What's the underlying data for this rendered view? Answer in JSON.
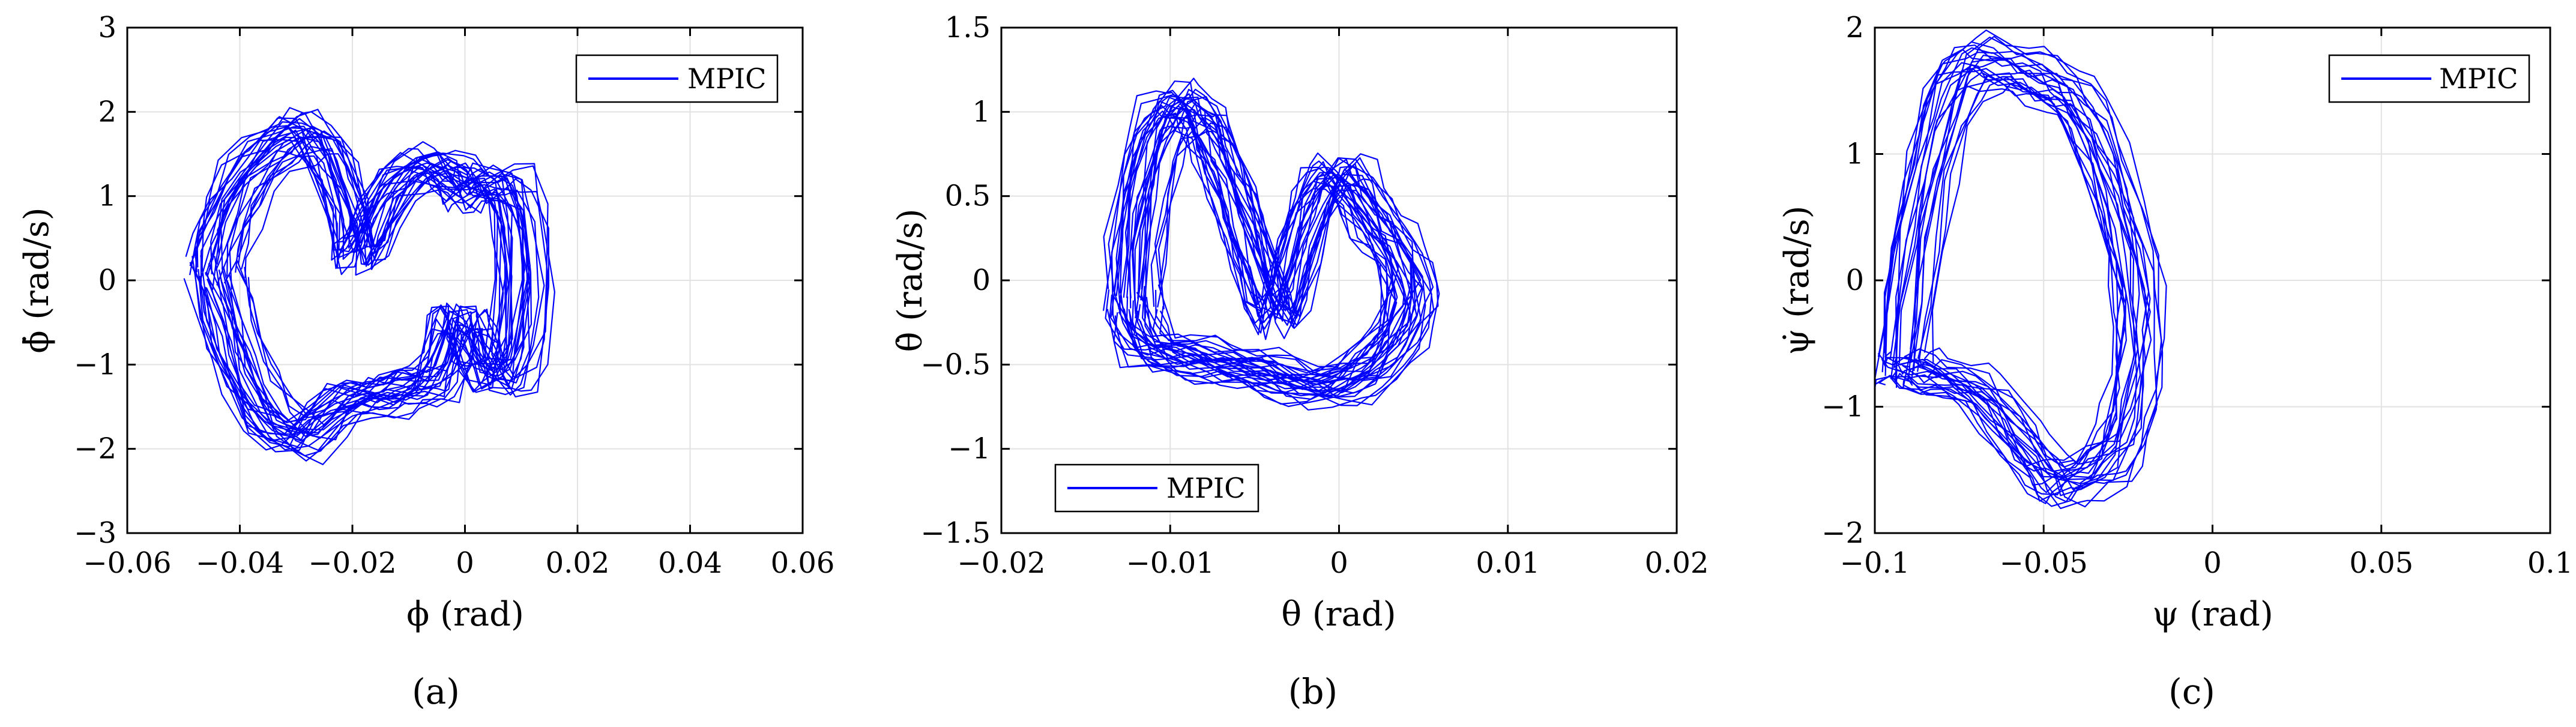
{
  "line_color": "#0000ff",
  "chart_data": [
    {
      "type": "line",
      "panel_label": "(a)",
      "xlabel": "ϕ (rad)",
      "ylabel": "ϕ̇ (rad/s)",
      "xlim": [
        -0.06,
        0.06
      ],
      "ylim": [
        -3,
        3
      ],
      "xticks": [
        -0.06,
        -0.04,
        -0.02,
        0,
        0.02,
        0.04,
        0.06
      ],
      "yticks": [
        -3,
        -2,
        -1,
        0,
        1,
        2,
        3
      ],
      "xtick_labels": [
        "−0.06",
        "−0.04",
        "−0.02",
        "0",
        "0.02",
        "0.04",
        "0.06"
      ],
      "ytick_labels": [
        "−3",
        "−2",
        "−1",
        "0",
        "1",
        "2",
        "3"
      ],
      "grid": true,
      "legend_position": "top-right",
      "series": [
        {
          "name": "MPIC",
          "color": "#0000ff",
          "x": [
            -0.047,
            -0.046,
            -0.044,
            -0.041,
            -0.037,
            -0.033,
            -0.03,
            -0.027,
            -0.024,
            -0.021,
            -0.02,
            -0.018,
            -0.015,
            -0.011,
            -0.007,
            -0.004,
            -0.001,
            0.001,
            0.003,
            0.006,
            0.009,
            0.011,
            0.012,
            0.011,
            0.009,
            0.006,
            0.004,
            0.002,
            0.001,
            -0.001,
            -0.003,
            -0.005,
            -0.008,
            -0.011,
            -0.014,
            -0.017,
            -0.021,
            -0.025,
            -0.029,
            -0.033,
            -0.037,
            -0.04,
            -0.043,
            -0.045,
            -0.047
          ],
          "y": [
            0.1,
            0.5,
            0.9,
            1.3,
            1.6,
            1.8,
            1.9,
            1.8,
            1.4,
            0.8,
            0.3,
            0.4,
            0.9,
            1.3,
            1.45,
            1.45,
            1.3,
            1.1,
            1.2,
            1.25,
            1.2,
            0.8,
            0.0,
            -0.8,
            -1.2,
            -1.25,
            -1.1,
            -0.7,
            -0.5,
            -0.5,
            -1.0,
            -1.3,
            -1.35,
            -1.4,
            -1.45,
            -1.5,
            -1.5,
            -1.7,
            -2.0,
            -1.95,
            -1.75,
            -1.4,
            -0.9,
            -0.4,
            0.1
          ]
        }
      ]
    },
    {
      "type": "line",
      "panel_label": "(b)",
      "xlabel": "θ (rad)",
      "ylabel": "θ̇ (rad/s)",
      "xlim": [
        -0.02,
        0.02
      ],
      "ylim": [
        -1.5,
        1.5
      ],
      "xticks": [
        -0.02,
        -0.01,
        0,
        0.01,
        0.02
      ],
      "yticks": [
        -1.5,
        -1,
        -0.5,
        0,
        0.5,
        1,
        1.5
      ],
      "xtick_labels": [
        "−0.02",
        "−0.01",
        "0",
        "0.01",
        "0.02"
      ],
      "ytick_labels": [
        "−1.5",
        "−1",
        "−0.5",
        "0",
        "0.5",
        "1",
        "1.5"
      ],
      "grid": true,
      "legend_position": "bottom-left",
      "series": [
        {
          "name": "MPIC",
          "color": "#0000ff",
          "x": [
            -0.0128,
            -0.0127,
            -0.0122,
            -0.0115,
            -0.0107,
            -0.0099,
            -0.0092,
            -0.0086,
            -0.008,
            -0.0074,
            -0.0066,
            -0.0058,
            -0.005,
            -0.0042,
            -0.0036,
            -0.003,
            -0.0022,
            -0.0014,
            -0.0006,
            0.0002,
            0.001,
            0.0018,
            0.0026,
            0.0034,
            0.0042,
            0.0047,
            0.0046,
            0.004,
            0.003,
            0.0018,
            0.0006,
            -0.0008,
            -0.0022,
            -0.0036,
            -0.005,
            -0.0064,
            -0.0078,
            -0.0092,
            -0.0106,
            -0.0118,
            -0.0126,
            -0.0128
          ],
          "y": [
            -0.15,
            0.2,
            0.55,
            0.85,
            1.02,
            1.1,
            1.1,
            1.05,
            0.95,
            0.8,
            0.6,
            0.35,
            0.1,
            -0.15,
            -0.25,
            -0.1,
            0.2,
            0.45,
            0.62,
            0.68,
            0.62,
            0.5,
            0.35,
            0.25,
            0.12,
            -0.05,
            -0.2,
            -0.35,
            -0.48,
            -0.6,
            -0.66,
            -0.68,
            -0.66,
            -0.62,
            -0.58,
            -0.55,
            -0.52,
            -0.5,
            -0.48,
            -0.44,
            -0.3,
            -0.15
          ]
        }
      ]
    },
    {
      "type": "line",
      "panel_label": "(c)",
      "xlabel": "ψ (rad)",
      "ylabel": "ψ̇ (rad/s)",
      "xlim": [
        -0.1,
        0.1
      ],
      "ylim": [
        -2,
        2
      ],
      "xticks": [
        -0.1,
        -0.05,
        0,
        0.05,
        0.1
      ],
      "yticks": [
        -2,
        -1,
        0,
        1,
        2
      ],
      "xtick_labels": [
        "−0.1",
        "−0.05",
        "0",
        "0.05",
        "0.1"
      ],
      "ytick_labels": [
        "−2",
        "−1",
        "0",
        "1",
        "2"
      ],
      "grid": true,
      "legend_position": "top-right",
      "series": [
        {
          "name": "MPIC",
          "color": "#0000ff",
          "x": [
            -0.095,
            -0.093,
            -0.09,
            -0.086,
            -0.081,
            -0.076,
            -0.071,
            -0.066,
            -0.061,
            -0.056,
            -0.051,
            -0.046,
            -0.041,
            -0.036,
            -0.031,
            -0.026,
            -0.022,
            -0.02,
            -0.02,
            -0.021,
            -0.023,
            -0.026,
            -0.03,
            -0.035,
            -0.04,
            -0.044,
            -0.048,
            -0.052,
            -0.057,
            -0.063,
            -0.069,
            -0.075,
            -0.081,
            -0.087,
            -0.092,
            -0.095,
            -0.095
          ],
          "y": [
            -0.75,
            -0.2,
            0.4,
            0.95,
            1.45,
            1.75,
            1.85,
            1.85,
            1.8,
            1.75,
            1.7,
            1.65,
            1.55,
            1.35,
            1.05,
            0.6,
            0.2,
            -0.15,
            -0.5,
            -0.85,
            -1.15,
            -1.4,
            -1.55,
            -1.62,
            -1.68,
            -1.72,
            -1.7,
            -1.55,
            -1.35,
            -1.15,
            -0.98,
            -0.88,
            -0.82,
            -0.78,
            -0.76,
            -0.75,
            -0.75
          ]
        }
      ]
    }
  ]
}
